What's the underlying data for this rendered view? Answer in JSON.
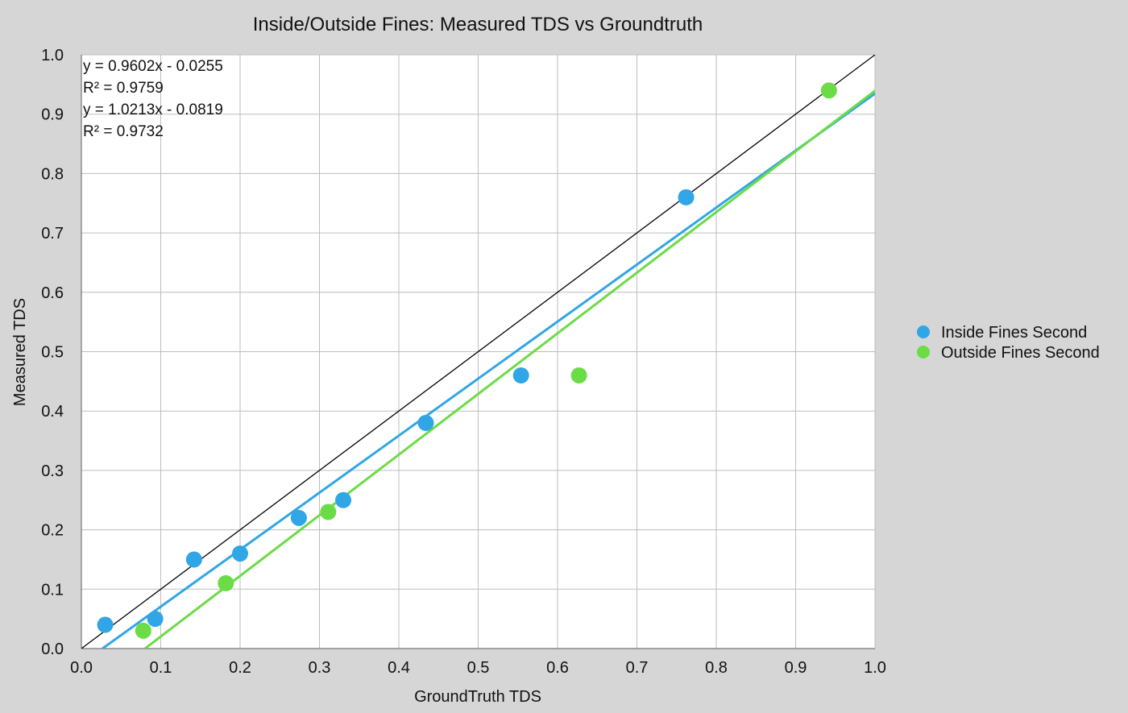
{
  "chart_data": {
    "type": "scatter",
    "title": "Inside/Outside Fines: Measured TDS vs Groundtruth",
    "xlabel": "GroundTruth TDS",
    "ylabel": "Measured TDS",
    "xlim": [
      0,
      1
    ],
    "ylim": [
      0,
      1
    ],
    "x_ticks": [
      "0.0",
      "0.1",
      "0.2",
      "0.3",
      "0.4",
      "0.5",
      "0.6",
      "0.7",
      "0.8",
      "0.9",
      "1.0"
    ],
    "y_ticks": [
      "0.0",
      "0.1",
      "0.2",
      "0.3",
      "0.4",
      "0.5",
      "0.6",
      "0.7",
      "0.8",
      "0.9",
      "1.0"
    ],
    "grid": true,
    "legend_position": "right",
    "reference_line": {
      "slope": 1,
      "intercept": 0,
      "color": "#000000"
    },
    "series": [
      {
        "name": "Inside Fines Second",
        "color": "#31a6e6",
        "points": [
          {
            "x": 0.03,
            "y": 0.04
          },
          {
            "x": 0.093,
            "y": 0.05
          },
          {
            "x": 0.142,
            "y": 0.15
          },
          {
            "x": 0.2,
            "y": 0.16
          },
          {
            "x": 0.274,
            "y": 0.22
          },
          {
            "x": 0.33,
            "y": 0.25
          },
          {
            "x": 0.434,
            "y": 0.38
          },
          {
            "x": 0.554,
            "y": 0.46
          },
          {
            "x": 0.762,
            "y": 0.76
          }
        ],
        "trendline": {
          "slope": 0.9602,
          "intercept": -0.0255
        }
      },
      {
        "name": "Outside Fines Second",
        "color": "#6bdc45",
        "points": [
          {
            "x": 0.078,
            "y": 0.03
          },
          {
            "x": 0.182,
            "y": 0.11
          },
          {
            "x": 0.311,
            "y": 0.23
          },
          {
            "x": 0.627,
            "y": 0.46
          },
          {
            "x": 0.942,
            "y": 0.94
          }
        ],
        "trendline": {
          "slope": 1.0213,
          "intercept": -0.0819
        }
      }
    ],
    "annotations": [
      "y = 0.9602x - 0.0255",
      "R² = 0.9759",
      "y = 1.0213x - 0.0819",
      "R² = 0.9732"
    ]
  }
}
